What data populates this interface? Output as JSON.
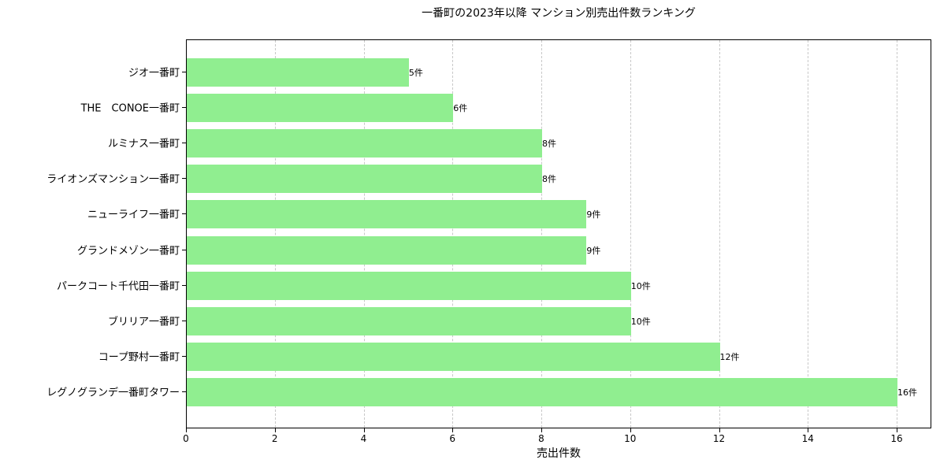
{
  "chart_data": {
    "type": "bar",
    "orientation": "horizontal",
    "title": "一番町の2023年以降 マンション別売出件数ランキング",
    "xlabel": "売出件数",
    "ylabel": "",
    "categories": [
      "ジオ一番町",
      "THE　CONOE一番町",
      "ルミナス一番町",
      "ライオンズマンション一番町",
      "ニューライフ一番町",
      "グランドメゾン一番町",
      "パークコート千代田一番町",
      "ブリリア一番町",
      "コープ野村一番町",
      "レグノグランデ一番町タワー"
    ],
    "values": [
      5,
      6,
      8,
      8,
      9,
      9,
      10,
      10,
      12,
      16
    ],
    "value_labels": [
      "5件",
      "6件",
      "8件",
      "8件",
      "9件",
      "9件",
      "10件",
      "10件",
      "12件",
      "16件"
    ],
    "xticks": [
      "0",
      "2",
      "4",
      "6",
      "8",
      "10",
      "12",
      "14",
      "16"
    ],
    "xlim": [
      0,
      16.8
    ],
    "grid": "x, dashed",
    "bar_color": "#90ee90",
    "legend": "none"
  }
}
